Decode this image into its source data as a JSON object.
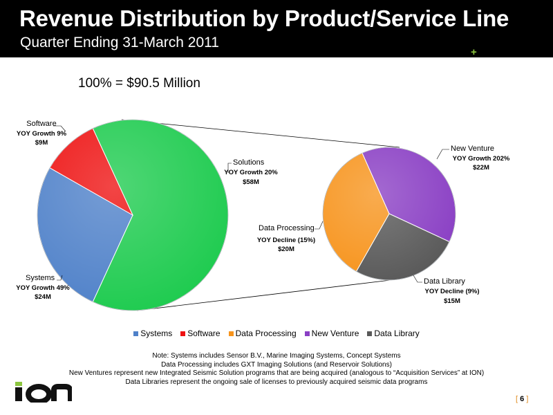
{
  "header": {
    "title": "Revenue Distribution by Product/Service Line",
    "subtitle": "Quarter Ending 31-March 2011"
  },
  "total_label": "100% = $90.5 Million",
  "chart_data": {
    "type": "pie",
    "subtype": "pie-of-pie",
    "total": "$90.5 Million",
    "main_pie": [
      {
        "category": "Solutions",
        "value": 58,
        "annotation": "YOY Growth 20%",
        "amount": "$58M",
        "color": "#1ecb4f"
      },
      {
        "category": "Systems",
        "value": 24,
        "annotation": "YOY Growth 49%",
        "amount": "$24M",
        "color": "#4f81c9"
      },
      {
        "category": "Software",
        "value": 9,
        "annotation": "YOY Growth 9%",
        "amount": "$9M",
        "color": "#ee1111"
      }
    ],
    "secondary_pie": [
      {
        "category": "New Venture",
        "value": 22,
        "annotation": "YOY Growth 202%",
        "amount": "$22M",
        "color": "#8a3fc4"
      },
      {
        "category": "Data Library",
        "value": 15,
        "annotation": "YOY Decline (9%)",
        "amount": "$15M",
        "color": "#595959"
      },
      {
        "category": "Data Processing",
        "value": 20,
        "annotation": "YOY Decline (15%)",
        "amount": "$20M",
        "color": "#f7941d"
      }
    ],
    "legend": [
      {
        "label": "Systems",
        "color": "#4f81c9"
      },
      {
        "label": "Software",
        "color": "#ee1111"
      },
      {
        "label": "Data Processing",
        "color": "#f7941d"
      },
      {
        "label": "New Venture",
        "color": "#8a3fc4"
      },
      {
        "label": "Data Library",
        "color": "#595959"
      }
    ],
    "legend_position": "bottom"
  },
  "notes": [
    "Note: Systems includes Sensor B.V., Marine Imaging Systems, Concept Systems",
    "Data Processing includes GXT Imaging Solutions (and Reservoir Solutions)",
    "New Ventures represent new Integrated Seismic Solution programs that are being acquired (analogous to “Acquisition Services” at ION)",
    "Data Libraries represent the ongoing sale of licenses to previously acquired seismic data programs"
  ],
  "footer": {
    "logo_text": "ION",
    "page_number": "6",
    "bracket_open": "[",
    "bracket_close": "]"
  }
}
